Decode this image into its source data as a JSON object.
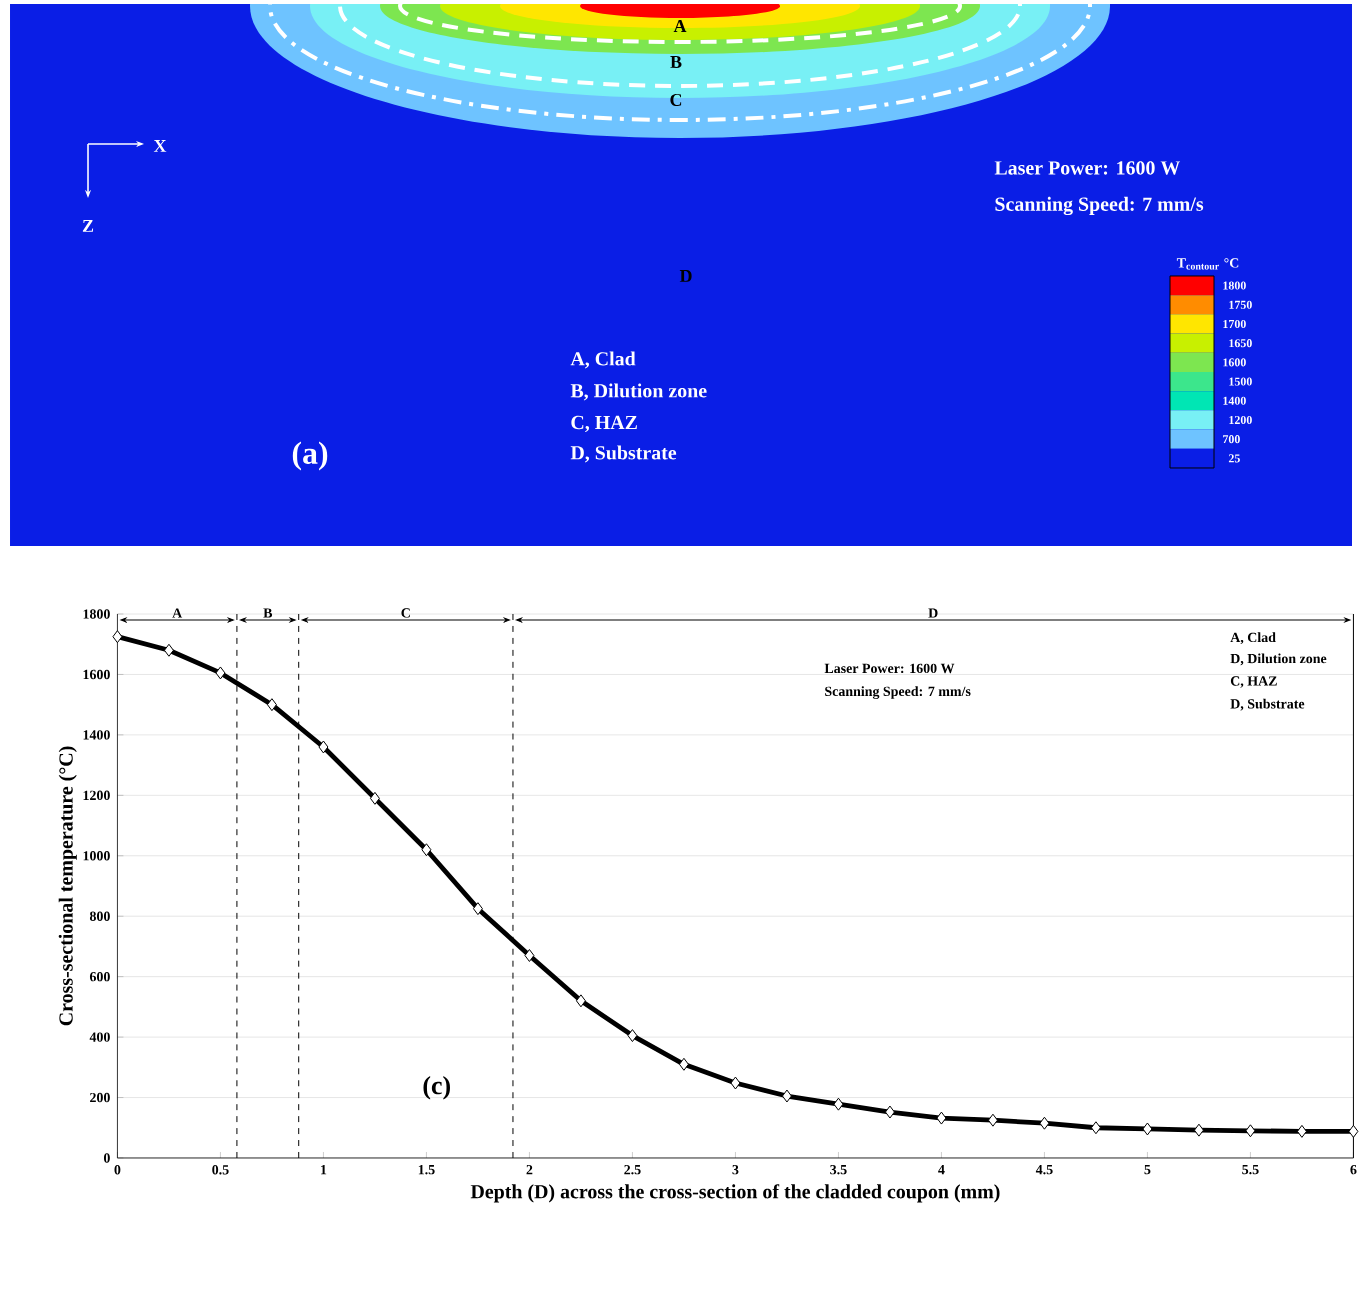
{
  "chart_data": [
    {
      "type": "other",
      "title": "(a)",
      "legend_title": "T$_{contour}$ °C",
      "categories": [
        "1800",
        "1750",
        "1700",
        "1650",
        "1600",
        "1500",
        "1400",
        "1200",
        "700",
        "25"
      ],
      "colors": [
        "#ff0000",
        "#ff8c00",
        "#ffe600",
        "#c8f000",
        "#7de650",
        "#3ce68c",
        "#00e6b4",
        "#78f0f5",
        "#6ec3ff",
        "#0a1ee6"
      ],
      "annotations": [
        "A",
        "B",
        "C",
        "X",
        "Z",
        "Laser Power: 1600 W",
        "Scanning Speed: 7 mm/s",
        "D",
        "A, Clad",
        "B, Dilution zone",
        "C, HAZ",
        "D, Substrate"
      ]
    },
    {
      "type": "line",
      "xlabel": "Depth (D) across the cross-section of the cladded coupon (mm)",
      "ylabel": "Cross-sectional temperature (°C)",
      "x": [
        0,
        0.25,
        0.5,
        0.75,
        1,
        1.25,
        1.5,
        1.75,
        2,
        2.25,
        2.5,
        2.75,
        3,
        3.25,
        3.5,
        3.75,
        4,
        4.25,
        4.5,
        4.75,
        5,
        5.25,
        5.5,
        5.75,
        6
      ],
      "series": [
        {
          "color": "#000000",
          "values": [
            1725,
            1680,
            1605,
            1500,
            1360,
            1190,
            1020,
            825,
            670,
            520,
            405,
            310,
            248,
            205,
            178,
            152,
            132,
            125,
            115,
            100,
            96,
            92,
            90,
            88,
            88
          ]
        }
      ],
      "xlim": [
        0,
        6
      ],
      "xticks": [
        0,
        0.5,
        1,
        1.5,
        2,
        2.5,
        3,
        3.5,
        4,
        4.5,
        5,
        5.5,
        6
      ],
      "ylim": [
        0,
        1800
      ],
      "yticks": [
        0,
        200,
        400,
        600,
        800,
        1000,
        1200,
        1400,
        1600,
        1800
      ],
      "grid": "y",
      "marker": "diamond",
      "line_style": "solid",
      "ref_lines": [
        {
          "axis": "x",
          "value": 0.58,
          "line_style": "dashed",
          "color": "#000000"
        },
        {
          "axis": "x",
          "value": 0.88,
          "line_style": "dashed",
          "color": "#000000"
        },
        {
          "axis": "x",
          "value": 1.92,
          "line_style": "dashed",
          "color": "#000000"
        }
      ],
      "annotations": [
        "A",
        "B",
        "C",
        "D",
        "Laser Power: 1600 W",
        "Scanning Speed: 7 mm/s",
        "A, Clad",
        "D, Dilution zone",
        "C, HAZ",
        "D, Substrate",
        "(c)"
      ]
    }
  ]
}
